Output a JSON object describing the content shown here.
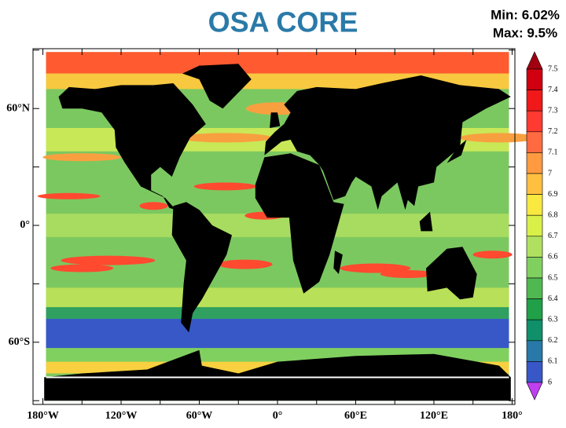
{
  "title": "OSA CORE",
  "stats": {
    "min": "Min: 6.02%",
    "max": "Max: 9.5%"
  },
  "map": {
    "lat_labels": [
      "60°N",
      "0°",
      "60°S"
    ],
    "lon_labels": [
      "180°W",
      "120°W",
      "60°W",
      "0°",
      "60°E",
      "120°E",
      "180°"
    ]
  },
  "colorbar": {
    "labels": [
      "7.5",
      "7.4",
      "7.3",
      "7.2",
      "7.1",
      "7",
      "6.9",
      "6.8",
      "6.7",
      "6.6",
      "6.5",
      "6.4",
      "6.3",
      "6.2",
      "6.1",
      "6"
    ],
    "colors": [
      "#a00010",
      "#d00010",
      "#f01818",
      "#ff3a30",
      "#ff6a40",
      "#ff9a40",
      "#ffc040",
      "#f8e840",
      "#d8f048",
      "#b0e060",
      "#80d060",
      "#50b850",
      "#20a048",
      "#10906a",
      "#2878a8",
      "#3858c8",
      "#5040d8",
      "#c040f0"
    ]
  }
}
